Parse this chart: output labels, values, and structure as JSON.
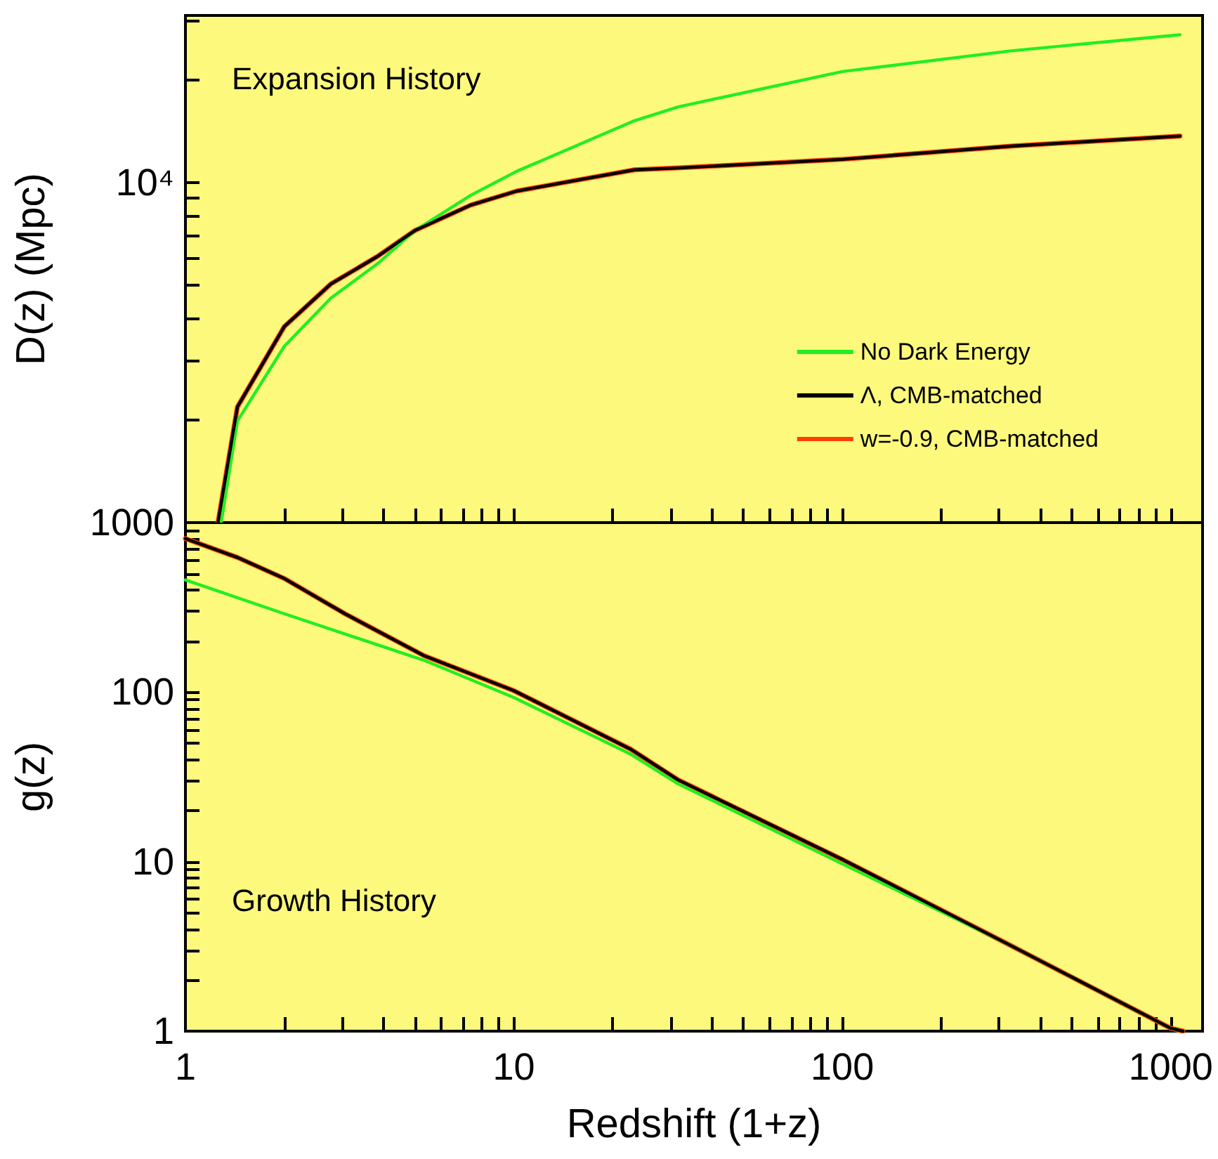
{
  "chart_data": [
    {
      "type": "line",
      "ylabel": "D(z) (Mpc)",
      "annotations": [
        "Expansion History"
      ],
      "log": "xy",
      "legend": "bottom right",
      "tick_labels": "y",
      "grid": false,
      "marker": "none",
      "line_style": "solid",
      "xlim": [
        1,
        1250
      ],
      "xticks": [
        1,
        {
          "value": 2,
          "label": null
        },
        {
          "value": 3,
          "label": null
        },
        {
          "value": 4,
          "label": null
        },
        {
          "value": 5,
          "label": null
        },
        {
          "value": 6,
          "label": null
        },
        {
          "value": 7,
          "label": null
        },
        {
          "value": 8,
          "label": null
        },
        {
          "value": 9,
          "label": null
        },
        10,
        {
          "value": 20,
          "label": null
        },
        {
          "value": 30,
          "label": null
        },
        {
          "value": 40,
          "label": null
        },
        {
          "value": 50,
          "label": null
        },
        {
          "value": 60,
          "label": null
        },
        {
          "value": 70,
          "label": null
        },
        {
          "value": 80,
          "label": null
        },
        {
          "value": 90,
          "label": null
        },
        100,
        {
          "value": 200,
          "label": null
        },
        {
          "value": 300,
          "label": null
        },
        {
          "value": 400,
          "label": null
        },
        {
          "value": 500,
          "label": null
        },
        {
          "value": 600,
          "label": null
        },
        {
          "value": 700,
          "label": null
        },
        {
          "value": 800,
          "label": null
        },
        {
          "value": 900,
          "label": null
        },
        1000
      ],
      "ylim": [
        1000,
        31000
      ],
      "yticks": [
        1000,
        {
          "value": 2000,
          "label": null
        },
        {
          "value": 3000,
          "label": null
        },
        {
          "value": 4000,
          "label": null
        },
        {
          "value": 5000,
          "label": null
        },
        {
          "value": 6000,
          "label": null
        },
        {
          "value": 7000,
          "label": null
        },
        {
          "value": 8000,
          "label": null
        },
        {
          "value": 9000,
          "label": null
        },
        {
          "value": 10000,
          "label": "10⁴"
        },
        {
          "value": 20000,
          "label": null
        },
        {
          "value": 30000,
          "label": null
        }
      ],
      "series": [
        {
          "name": "No Dark Energy",
          "color": "#22ee22",
          "x": [
            1.285,
            1.44,
            2.0,
            2.77,
            3.86,
            5.0,
            7.4,
            10.2,
            23.3,
            31.7,
            100,
            327,
            1067
          ],
          "values": [
            1000,
            1990,
            3300,
            4570,
            5790,
            7230,
            9180,
            10790,
            15200,
            16700,
            21200,
            24400,
            27200
          ]
        },
        {
          "name": "Λ, CMB-matched",
          "color": "#000000",
          "x": [
            1.256,
            1.44,
            2.0,
            2.77,
            3.86,
            5.0,
            7.4,
            10.2,
            23.3,
            31.7,
            100,
            327,
            1067
          ],
          "values": [
            1000,
            2190,
            3770,
            5030,
            6080,
            7230,
            8590,
            9440,
            10900,
            11040,
            11700,
            12800,
            13700
          ]
        },
        {
          "name": "w=-0.9, CMB-matched",
          "color": "#ff4000",
          "x": [
            1.256,
            1.44,
            2.0,
            2.77,
            3.86,
            5.0,
            7.4,
            10.2,
            23.3,
            31.7,
            100,
            327,
            1067
          ],
          "values": [
            1000,
            2190,
            3770,
            5030,
            6080,
            7230,
            8590,
            9440,
            10900,
            11040,
            11700,
            12800,
            13700
          ]
        }
      ]
    },
    {
      "type": "line",
      "xlabel": "Redshift (1+z)",
      "ylabel": "g(z)",
      "annotations": [
        "Growth History"
      ],
      "log": "xy",
      "legend": false,
      "grid": false,
      "marker": "none",
      "line_style": "solid",
      "xlim": [
        1,
        1250
      ],
      "xticks": [
        1,
        {
          "value": 2,
          "label": null
        },
        {
          "value": 3,
          "label": null
        },
        {
          "value": 4,
          "label": null
        },
        {
          "value": 5,
          "label": null
        },
        {
          "value": 6,
          "label": null
        },
        {
          "value": 7,
          "label": null
        },
        {
          "value": 8,
          "label": null
        },
        {
          "value": 9,
          "label": null
        },
        10,
        {
          "value": 20,
          "label": null
        },
        {
          "value": 30,
          "label": null
        },
        {
          "value": 40,
          "label": null
        },
        {
          "value": 50,
          "label": null
        },
        {
          "value": 60,
          "label": null
        },
        {
          "value": 70,
          "label": null
        },
        {
          "value": 80,
          "label": null
        },
        {
          "value": 90,
          "label": null
        },
        100,
        {
          "value": 200,
          "label": null
        },
        {
          "value": 300,
          "label": null
        },
        {
          "value": 400,
          "label": null
        },
        {
          "value": 500,
          "label": null
        },
        {
          "value": 600,
          "label": null
        },
        {
          "value": 700,
          "label": null
        },
        {
          "value": 800,
          "label": null
        },
        {
          "value": 900,
          "label": null
        },
        1000
      ],
      "ylim": [
        1,
        1000
      ],
      "yticks": [
        1,
        {
          "value": 2,
          "label": null
        },
        {
          "value": 3,
          "label": null
        },
        {
          "value": 4,
          "label": null
        },
        {
          "value": 5,
          "label": null
        },
        {
          "value": 6,
          "label": null
        },
        {
          "value": 7,
          "label": null
        },
        {
          "value": 8,
          "label": null
        },
        {
          "value": 9,
          "label": null
        },
        10,
        {
          "value": 20,
          "label": null
        },
        {
          "value": 30,
          "label": null
        },
        {
          "value": 40,
          "label": null
        },
        {
          "value": 50,
          "label": null
        },
        {
          "value": 60,
          "label": null
        },
        {
          "value": 70,
          "label": null
        },
        {
          "value": 80,
          "label": null
        },
        {
          "value": 90,
          "label": null
        },
        100,
        {
          "value": 200,
          "label": null
        },
        {
          "value": 300,
          "label": null
        },
        {
          "value": 400,
          "label": null
        },
        {
          "value": 500,
          "label": null
        },
        {
          "value": 600,
          "label": null
        },
        {
          "value": 700,
          "label": null
        },
        {
          "value": 800,
          "label": null
        },
        {
          "value": 900,
          "label": null
        },
        {
          "value": 1000,
          "label": null
        }
      ],
      "series": [
        {
          "color": "#22ee22",
          "x": [
            1,
            2.0,
            5.33,
            10,
            22.7,
            31.6,
            100,
            316,
            1000,
            1090
          ],
          "values": [
            459,
            290,
            154,
            93,
            43,
            28.8,
            9.7,
            3.3,
            1.04,
            1.0
          ]
        },
        {
          "color": "#000000",
          "x": [
            1,
            1.44,
            2.0,
            3.06,
            5.33,
            10,
            22.7,
            31.6,
            100,
            316,
            1000,
            1090
          ],
          "values": [
            805,
            623,
            468,
            290,
            164,
            102,
            46,
            30.4,
            10.3,
            3.3,
            1.04,
            1.0
          ]
        },
        {
          "color": "#ff4000",
          "x": [
            1,
            1.44,
            2.0,
            3.06,
            5.33,
            10,
            22.7,
            31.6,
            100,
            316,
            1000,
            1090
          ],
          "values": [
            805,
            623,
            468,
            290,
            164,
            102,
            46,
            30.4,
            10.3,
            3.3,
            1.04,
            1.0
          ]
        }
      ]
    }
  ]
}
